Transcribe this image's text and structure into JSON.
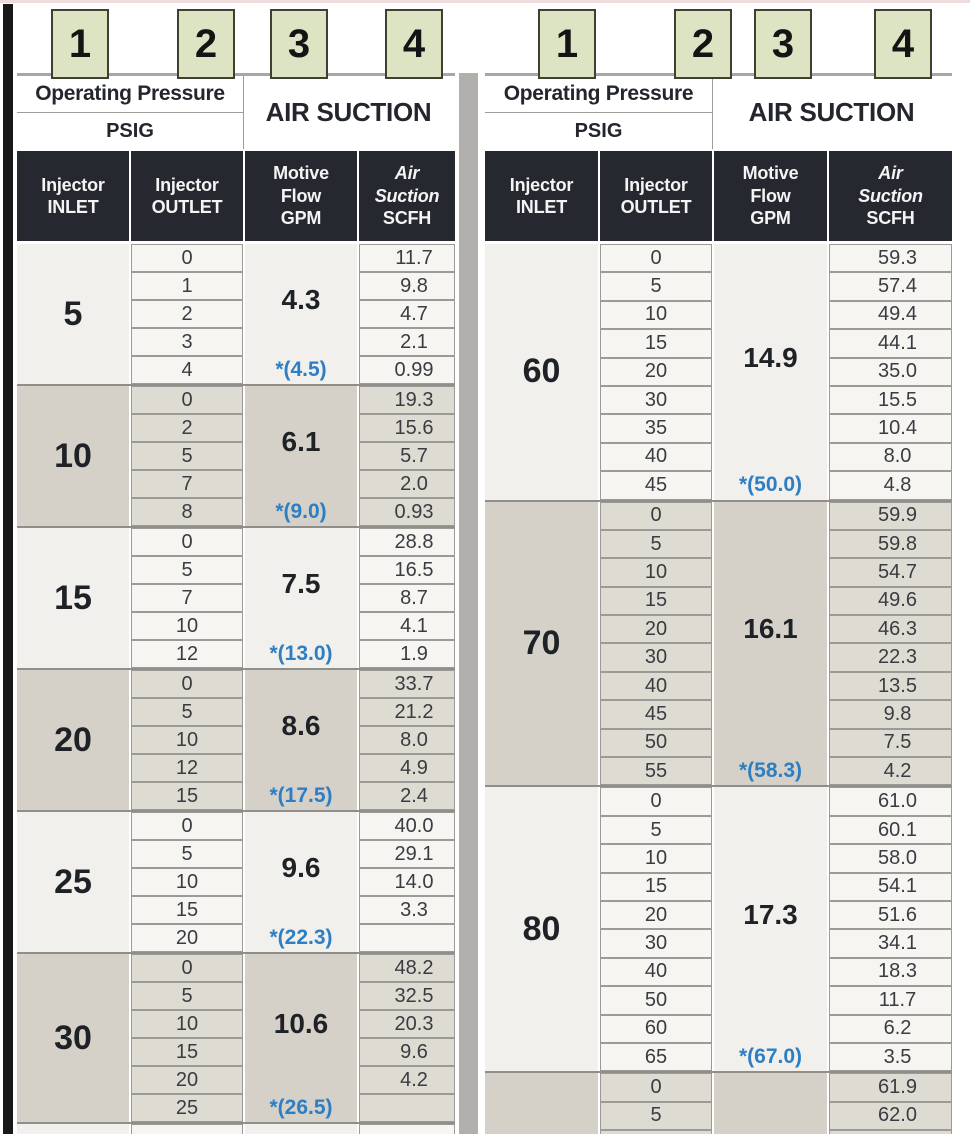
{
  "header": {
    "operating_pressure": "Operating Pressure",
    "psig": "PSIG",
    "air_suction": "AIR SUCTION",
    "badges": [
      "1",
      "2",
      "3",
      "4"
    ],
    "cols": [
      {
        "line1": "Injector",
        "line2": "INLET"
      },
      {
        "line1": "Injector",
        "line2": "OUTLET"
      },
      {
        "line1": "Motive",
        "line2": "Flow",
        "line3": "GPM"
      },
      {
        "line1": "Air",
        "line2": "Suction",
        "line3": "SCFH"
      }
    ]
  },
  "colors": {
    "accent_blue": "#2d7ec3",
    "header_dark": "#26282f",
    "badge_green": "#dde4c3",
    "shade_light": "#f1f0ec",
    "shade_dark": "#d5d1c8",
    "divider_gray": "#b0afac"
  },
  "tables": [
    {
      "id": "left",
      "groups": [
        {
          "inlet": "5",
          "motive_flow_gpm": "4.3",
          "max_outlet": "*(4.5)",
          "shade": "light",
          "rows": [
            [
              "0",
              "11.7"
            ],
            [
              "1",
              "9.8"
            ],
            [
              "2",
              "4.7"
            ],
            [
              "3",
              "2.1"
            ],
            [
              "4",
              "0.99"
            ]
          ]
        },
        {
          "inlet": "10",
          "motive_flow_gpm": "6.1",
          "max_outlet": "*(9.0)",
          "shade": "dark",
          "rows": [
            [
              "0",
              "19.3"
            ],
            [
              "2",
              "15.6"
            ],
            [
              "5",
              "5.7"
            ],
            [
              "7",
              "2.0"
            ],
            [
              "8",
              "0.93"
            ]
          ]
        },
        {
          "inlet": "15",
          "motive_flow_gpm": "7.5",
          "max_outlet": "*(13.0)",
          "shade": "light",
          "rows": [
            [
              "0",
              "28.8"
            ],
            [
              "5",
              "16.5"
            ],
            [
              "7",
              "8.7"
            ],
            [
              "10",
              "4.1"
            ],
            [
              "12",
              "1.9"
            ]
          ]
        },
        {
          "inlet": "20",
          "motive_flow_gpm": "8.6",
          "max_outlet": "*(17.5)",
          "shade": "dark",
          "rows": [
            [
              "0",
              "33.7"
            ],
            [
              "5",
              "21.2"
            ],
            [
              "10",
              "8.0"
            ],
            [
              "12",
              "4.9"
            ],
            [
              "15",
              "2.4"
            ]
          ]
        },
        {
          "inlet": "25",
          "motive_flow_gpm": "9.6",
          "max_outlet": "*(22.3)",
          "shade": "light",
          "rows": [
            [
              "0",
              "40.0"
            ],
            [
              "5",
              "29.1"
            ],
            [
              "10",
              "14.0"
            ],
            [
              "15",
              "3.3"
            ],
            [
              "20",
              ""
            ]
          ]
        },
        {
          "inlet": "30",
          "motive_flow_gpm": "10.6",
          "max_outlet": "*(26.5)",
          "shade": "dark",
          "rows": [
            [
              "0",
              "48.2"
            ],
            [
              "5",
              "32.5"
            ],
            [
              "10",
              "20.3"
            ],
            [
              "15",
              "9.6"
            ],
            [
              "20",
              "4.2"
            ],
            [
              "25",
              ""
            ]
          ]
        },
        {
          "inlet": "",
          "motive_flow_gpm": "",
          "max_outlet": "",
          "shade": "light",
          "rows": [
            [
              "",
              ""
            ]
          ]
        }
      ]
    },
    {
      "id": "right",
      "groups": [
        {
          "inlet": "60",
          "motive_flow_gpm": "14.9",
          "max_outlet": "*(50.0)",
          "shade": "light",
          "rows": [
            [
              "0",
              "59.3"
            ],
            [
              "5",
              "57.4"
            ],
            [
              "10",
              "49.4"
            ],
            [
              "15",
              "44.1"
            ],
            [
              "20",
              "35.0"
            ],
            [
              "30",
              "15.5"
            ],
            [
              "35",
              "10.4"
            ],
            [
              "40",
              "8.0"
            ],
            [
              "45",
              "4.8"
            ]
          ]
        },
        {
          "inlet": "70",
          "motive_flow_gpm": "16.1",
          "max_outlet": "*(58.3)",
          "shade": "dark",
          "rows": [
            [
              "0",
              "59.9"
            ],
            [
              "5",
              "59.8"
            ],
            [
              "10",
              "54.7"
            ],
            [
              "15",
              "49.6"
            ],
            [
              "20",
              "46.3"
            ],
            [
              "30",
              "22.3"
            ],
            [
              "40",
              "13.5"
            ],
            [
              "45",
              "9.8"
            ],
            [
              "50",
              "7.5"
            ],
            [
              "55",
              "4.2"
            ]
          ]
        },
        {
          "inlet": "80",
          "motive_flow_gpm": "17.3",
          "max_outlet": "*(67.0)",
          "shade": "light",
          "rows": [
            [
              "0",
              "61.0"
            ],
            [
              "5",
              "60.1"
            ],
            [
              "10",
              "58.0"
            ],
            [
              "15",
              "54.1"
            ],
            [
              "20",
              "51.6"
            ],
            [
              "30",
              "34.1"
            ],
            [
              "40",
              "18.3"
            ],
            [
              "50",
              "11.7"
            ],
            [
              "60",
              "6.2"
            ],
            [
              "65",
              "3.5"
            ]
          ]
        },
        {
          "inlet": "",
          "motive_flow_gpm": "",
          "max_outlet": "",
          "shade": "dark",
          "rows": [
            [
              "0",
              "61.9"
            ],
            [
              "5",
              "62.0"
            ],
            [
              "",
              ""
            ]
          ]
        }
      ]
    }
  ]
}
